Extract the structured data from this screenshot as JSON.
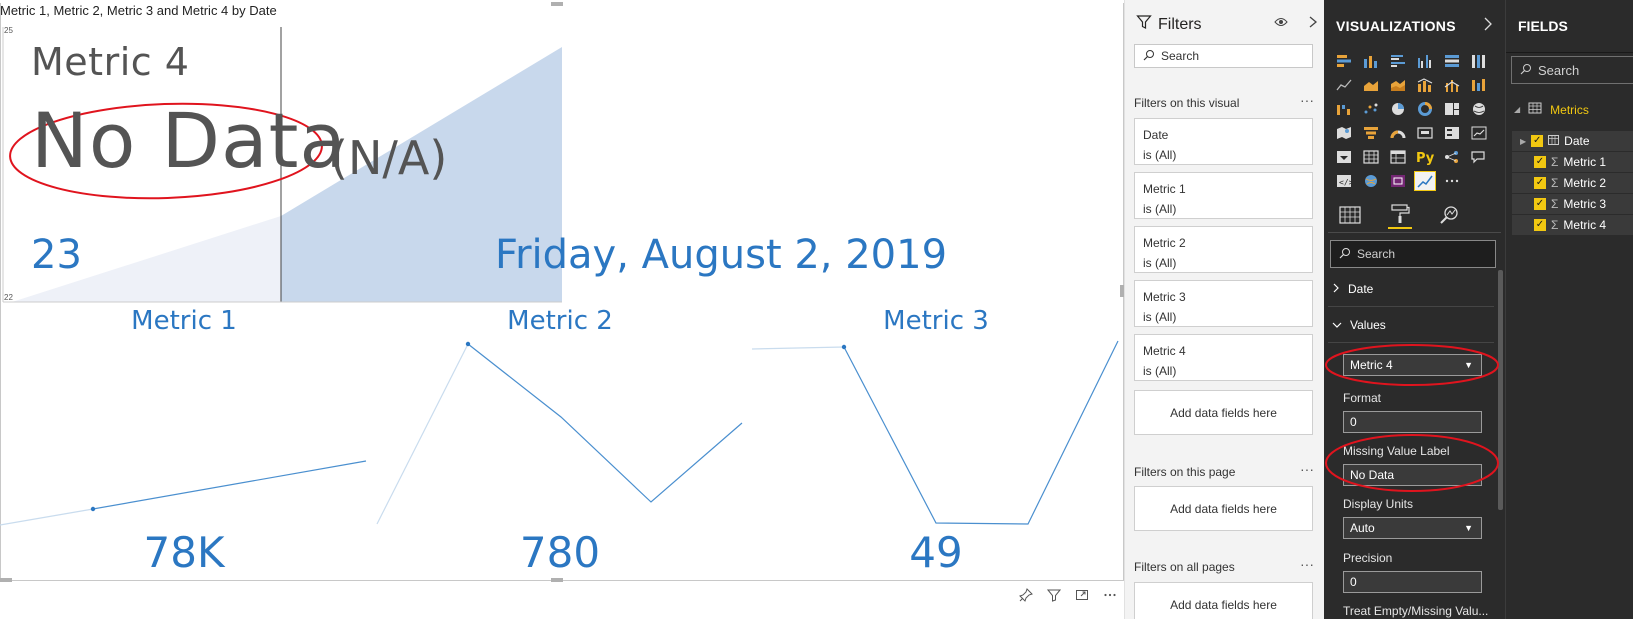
{
  "visual": {
    "title": "Metric 1, Metric 2, Metric 3 and Metric 4 by Date",
    "axis_top": "25",
    "axis_bottom": "22",
    "metric4_label": "Metric 4",
    "missing_value": "No Data",
    "missing_suffix": "(N/A)",
    "left_value": "23",
    "date_value": "Friday, August 2, 2019"
  },
  "kpis": [
    {
      "title": "Metric 1",
      "value": "78K"
    },
    {
      "title": "Metric 2",
      "value": "780"
    },
    {
      "title": "Metric 3",
      "value": "49"
    }
  ],
  "visual_header_icons": [
    "pin-icon",
    "filter-icon",
    "focus-mode-icon",
    "more-options-icon"
  ],
  "filters": {
    "title": "Filters",
    "search_placeholder": "Search",
    "on_visual_label": "Filters on this visual",
    "on_visual_cards": [
      {
        "field": "Date",
        "state": "is (All)"
      },
      {
        "field": "Metric 1",
        "state": "is (All)"
      },
      {
        "field": "Metric 2",
        "state": "is (All)"
      },
      {
        "field": "Metric 3",
        "state": "is (All)"
      },
      {
        "field": "Metric 4",
        "state": "is (All)"
      }
    ],
    "add_fields": "Add data fields here",
    "on_page_label": "Filters on this page",
    "on_all_pages_label": "Filters on all pages",
    "more": "..."
  },
  "visualizations": {
    "title": "VISUALIZATIONS",
    "search_placeholder": "Search",
    "sections": {
      "date": "Date",
      "values": "Values"
    },
    "values": {
      "selected_metric": "Metric 4",
      "format_label": "Format",
      "format_value": "0",
      "missing_label": "Missing Value Label",
      "missing_value": "No Data",
      "display_units_label": "Display Units",
      "display_units_value": "Auto",
      "precision_label": "Precision",
      "precision_value": "0",
      "treat_empty_label": "Treat Empty/Missing Valu..."
    }
  },
  "fields": {
    "title": "FIELDS",
    "search_placeholder": "Search",
    "table_name": "Metrics",
    "items": [
      "Date",
      "Metric 1",
      "Metric 2",
      "Metric 3",
      "Metric 4"
    ]
  },
  "colors": {
    "accent_blue": "#2b77c2",
    "annotation_red": "#e0141e",
    "pane_dark": "#2b2b2b",
    "highlight_yellow": "#f2c811"
  }
}
